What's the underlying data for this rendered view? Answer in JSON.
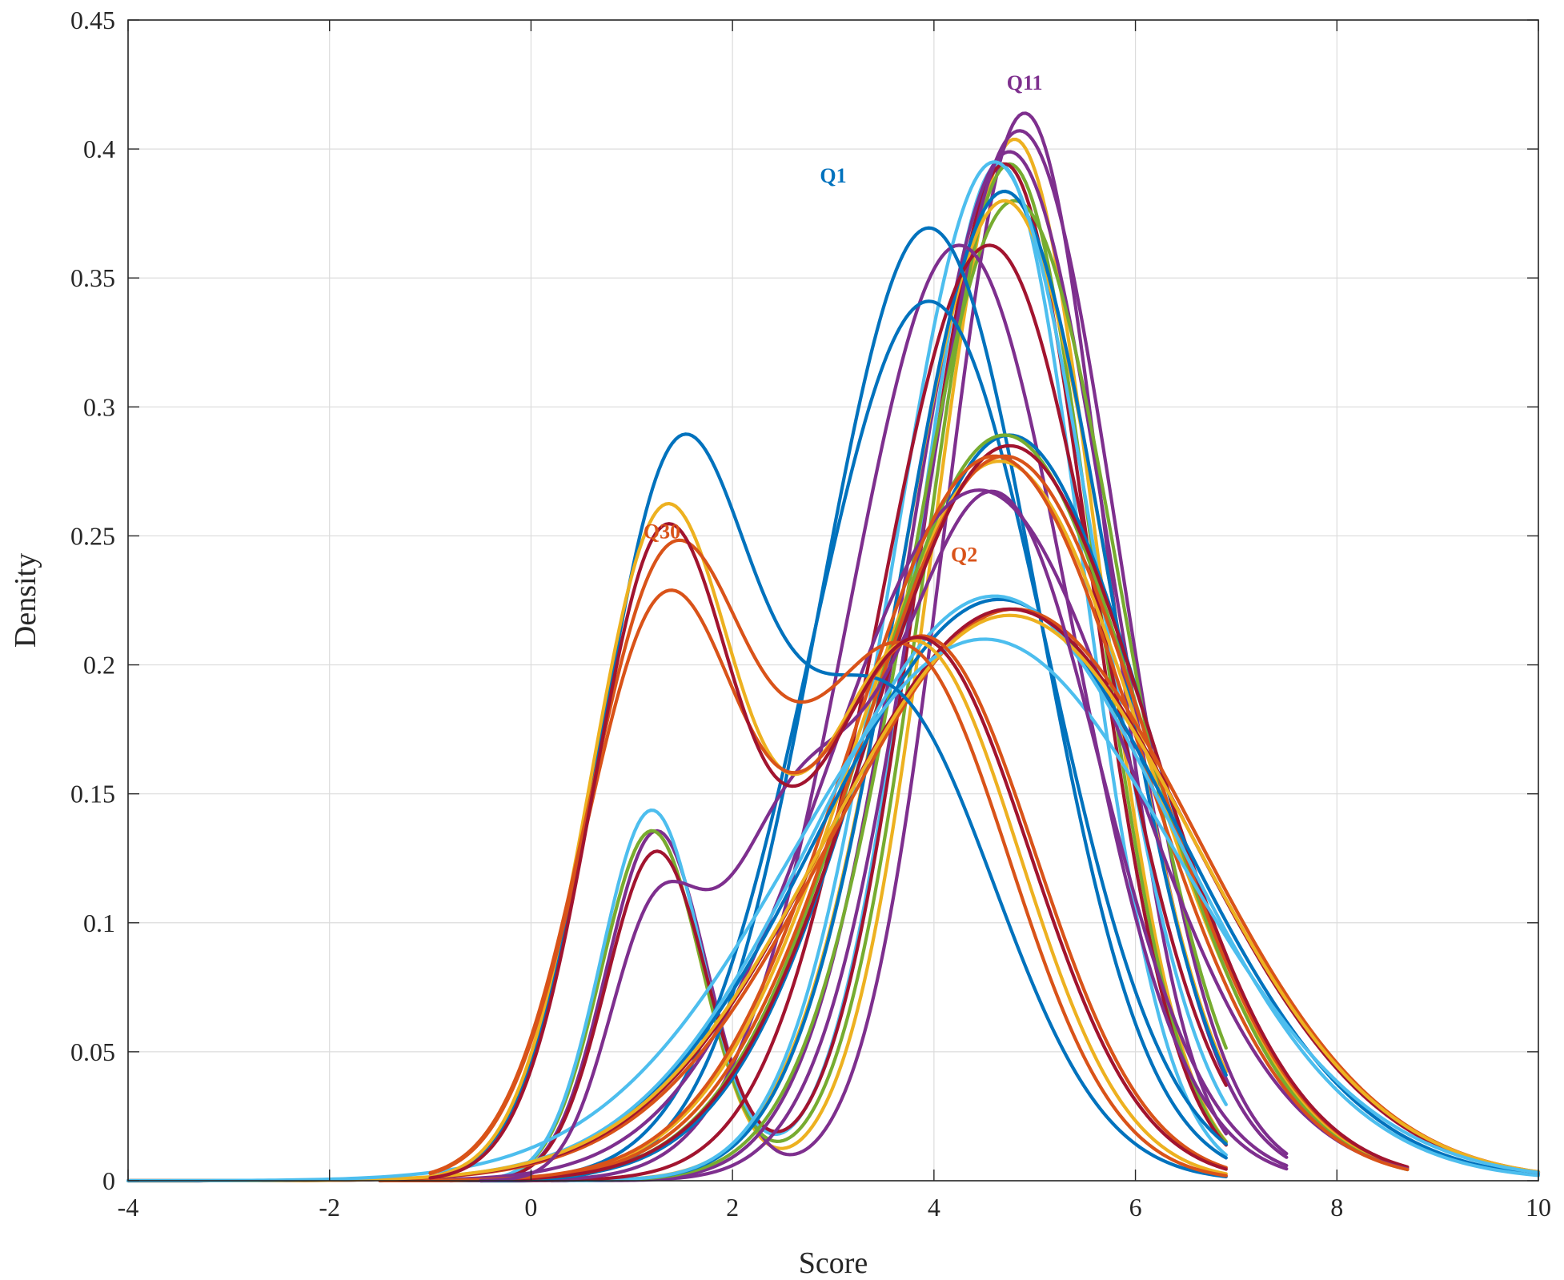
{
  "chart_data": {
    "type": "line",
    "title": "",
    "xlabel": "Score",
    "ylabel": "Density",
    "xlim": [
      -4,
      10
    ],
    "ylim": [
      0,
      0.45
    ],
    "xticks": [
      "-4",
      "-2",
      "0",
      "2",
      "4",
      "6",
      "8",
      "10"
    ],
    "yticks": [
      "0",
      "0.05",
      "0.1",
      "0.15",
      "0.2",
      "0.25",
      "0.3",
      "0.35",
      "0.4",
      "0.45"
    ],
    "grid": true,
    "legend": "none",
    "annotations": [
      {
        "text": "Q11",
        "x": 4.9,
        "y": 0.423,
        "color": "#7E2F8E"
      },
      {
        "text": "Q1",
        "x": 3.0,
        "y": 0.387,
        "color": "#0072BD"
      },
      {
        "text": "Q30",
        "x": 1.3,
        "y": 0.249,
        "color": "#D95319"
      },
      {
        "text": "Q2",
        "x": 4.3,
        "y": 0.24,
        "color": "#D95319"
      }
    ],
    "series": [
      {
        "color": "#EDB120",
        "components": [
          [
            0.17,
            1.2,
            0.5
          ],
          [
            0.83,
            4.8,
            0.82
          ]
        ],
        "range": [
          -0.8,
          6.9
        ]
      },
      {
        "color": "#7E2F8E",
        "components": [
          [
            0.17,
            1.25,
            0.5
          ],
          [
            0.83,
            4.9,
            0.8
          ]
        ],
        "range": [
          -0.8,
          6.9
        ]
      },
      {
        "color": "#77AC30",
        "components": [
          [
            0.17,
            1.2,
            0.5
          ],
          [
            0.83,
            4.75,
            0.84
          ]
        ],
        "range": [
          -0.8,
          6.9
        ]
      },
      {
        "color": "#4DBEEE",
        "components": [
          [
            0.18,
            1.2,
            0.5
          ],
          [
            0.82,
            4.65,
            0.83
          ]
        ],
        "range": [
          -0.8,
          6.9
        ]
      },
      {
        "color": "#A2142F",
        "components": [
          [
            0.16,
            1.25,
            0.5
          ],
          [
            0.84,
            4.7,
            0.85
          ]
        ],
        "range": [
          -0.8,
          6.9
        ]
      },
      {
        "color": "#7E2F8E",
        "components": [
          [
            0,
            0,
            1
          ],
          [
            1,
            4.85,
            0.98
          ]
        ],
        "range": [
          0.2,
          7.5
        ]
      },
      {
        "color": "#7E2F8E",
        "components": [
          [
            0,
            0,
            1
          ],
          [
            1,
            4.75,
            1.0
          ]
        ],
        "range": [
          0.2,
          7.5
        ]
      },
      {
        "color": "#77AC30",
        "components": [
          [
            0,
            0,
            1
          ],
          [
            1,
            4.8,
            1.05
          ]
        ],
        "range": [
          -0.5,
          6.9
        ]
      },
      {
        "color": "#EDB120",
        "components": [
          [
            0,
            0,
            1
          ],
          [
            1,
            4.7,
            1.05
          ]
        ],
        "range": [
          -0.5,
          6.9
        ]
      },
      {
        "color": "#0072BD",
        "components": [
          [
            0,
            0,
            1
          ],
          [
            1,
            4.7,
            1.04
          ]
        ],
        "range": [
          -0.5,
          6.9
        ]
      },
      {
        "color": "#4DBEEE",
        "components": [
          [
            0,
            0,
            1
          ],
          [
            1,
            4.6,
            1.01
          ]
        ],
        "range": [
          -0.5,
          6.9
        ]
      },
      {
        "color": "#A2142F",
        "components": [
          [
            0,
            0,
            1
          ],
          [
            1,
            4.55,
            1.1
          ]
        ],
        "range": [
          -0.5,
          6.9
        ]
      },
      {
        "color": "#7E2F8E",
        "components": [
          [
            0,
            0,
            1
          ],
          [
            1,
            4.25,
            1.1
          ]
        ],
        "range": [
          -0.8,
          7.5
        ]
      },
      {
        "color": "#0072BD",
        "components": [
          [
            0,
            0,
            1
          ],
          [
            1,
            3.95,
            1.08
          ]
        ],
        "range": [
          -0.8,
          6.9
        ]
      },
      {
        "color": "#0072BD",
        "components": [
          [
            0,
            0,
            1
          ],
          [
            1,
            3.95,
            1.17
          ]
        ],
        "range": [
          -0.8,
          6.9
        ]
      },
      {
        "color": "#0072BD",
        "components": [
          [
            0,
            0,
            1
          ],
          [
            1,
            4.75,
            1.38
          ]
        ],
        "range": [
          -1.5,
          8.7
        ]
      },
      {
        "color": "#EDB120",
        "components": [
          [
            0,
            0,
            1
          ],
          [
            1,
            4.65,
            1.43
          ]
        ],
        "range": [
          -1.5,
          8.7
        ]
      },
      {
        "color": "#77AC30",
        "components": [
          [
            0,
            0,
            1
          ],
          [
            1,
            4.7,
            1.38
          ]
        ],
        "range": [
          -1.5,
          8.7
        ]
      },
      {
        "color": "#D95319",
        "components": [
          [
            0,
            0,
            1
          ],
          [
            1,
            4.7,
            1.42
          ]
        ],
        "range": [
          -1.5,
          8.7
        ]
      },
      {
        "color": "#A2142F",
        "components": [
          [
            0,
            0,
            1
          ],
          [
            1,
            4.75,
            1.4
          ]
        ],
        "range": [
          -1.5,
          8.7
        ]
      },
      {
        "color": "#7E2F8E",
        "components": [
          [
            0,
            0,
            1
          ],
          [
            1,
            4.45,
            1.49
          ]
        ],
        "range": [
          -1.5,
          8.7
        ]
      },
      {
        "color": "#D95319",
        "components": [
          [
            0,
            0,
            1
          ],
          [
            1,
            4.6,
            1.42
          ]
        ],
        "range": [
          -1.5,
          8.7
        ]
      },
      {
        "color": "#0072BD",
        "components": [
          [
            0,
            0,
            1
          ],
          [
            1,
            4.65,
            1.77
          ]
        ],
        "range": [
          -4,
          10
        ]
      },
      {
        "color": "#4DBEEE",
        "components": [
          [
            0,
            0,
            1
          ],
          [
            1,
            4.6,
            1.76
          ]
        ],
        "range": [
          -4,
          10
        ]
      },
      {
        "color": "#D95319",
        "components": [
          [
            0,
            0,
            1
          ],
          [
            1,
            4.8,
            1.8
          ]
        ],
        "range": [
          -4,
          10
        ]
      },
      {
        "color": "#A2142F",
        "components": [
          [
            0,
            0,
            1
          ],
          [
            1,
            4.75,
            1.8
          ]
        ],
        "range": [
          -4,
          10
        ]
      },
      {
        "color": "#EDB120",
        "components": [
          [
            0,
            0,
            1
          ],
          [
            1,
            4.75,
            1.82
          ]
        ],
        "range": [
          -4,
          10
        ]
      },
      {
        "color": "#4DBEEE",
        "components": [
          [
            0,
            0,
            1
          ],
          [
            1,
            4.5,
            1.9
          ]
        ],
        "range": [
          -4,
          10
        ]
      },
      {
        "color": "#7E2F8E",
        "components": [
          [
            0.1,
            1.2,
            0.45
          ],
          [
            0.2,
            2.5,
            0.7
          ],
          [
            0.7,
            4.6,
            1.05
          ]
        ],
        "range": [
          -0.5,
          7.5
        ]
      },
      {
        "color": "#0072BD",
        "components": [
          [
            0.48,
            1.4,
            0.75
          ],
          [
            0.52,
            3.5,
            1.1
          ]
        ],
        "range": [
          -1,
          6.9
        ]
      },
      {
        "color": "#EDB120",
        "components": [
          [
            0.45,
            1.3,
            0.72
          ],
          [
            0.55,
            3.8,
            1.05
          ]
        ],
        "range": [
          -1,
          6.9
        ]
      },
      {
        "color": "#D95319",
        "components": [
          [
            0.46,
            1.35,
            0.8
          ],
          [
            0.54,
            3.7,
            1.05
          ]
        ],
        "range": [
          -1,
          6.9
        ]
      },
      {
        "color": "#D95319",
        "components": [
          [
            0.42,
            1.3,
            0.78
          ],
          [
            0.58,
            3.9,
            1.1
          ]
        ],
        "range": [
          -1,
          6.9
        ]
      },
      {
        "color": "#A2142F",
        "components": [
          [
            0.42,
            1.3,
            0.7
          ],
          [
            0.58,
            3.85,
            1.1
          ]
        ],
        "range": [
          -1,
          6.9
        ]
      }
    ]
  }
}
